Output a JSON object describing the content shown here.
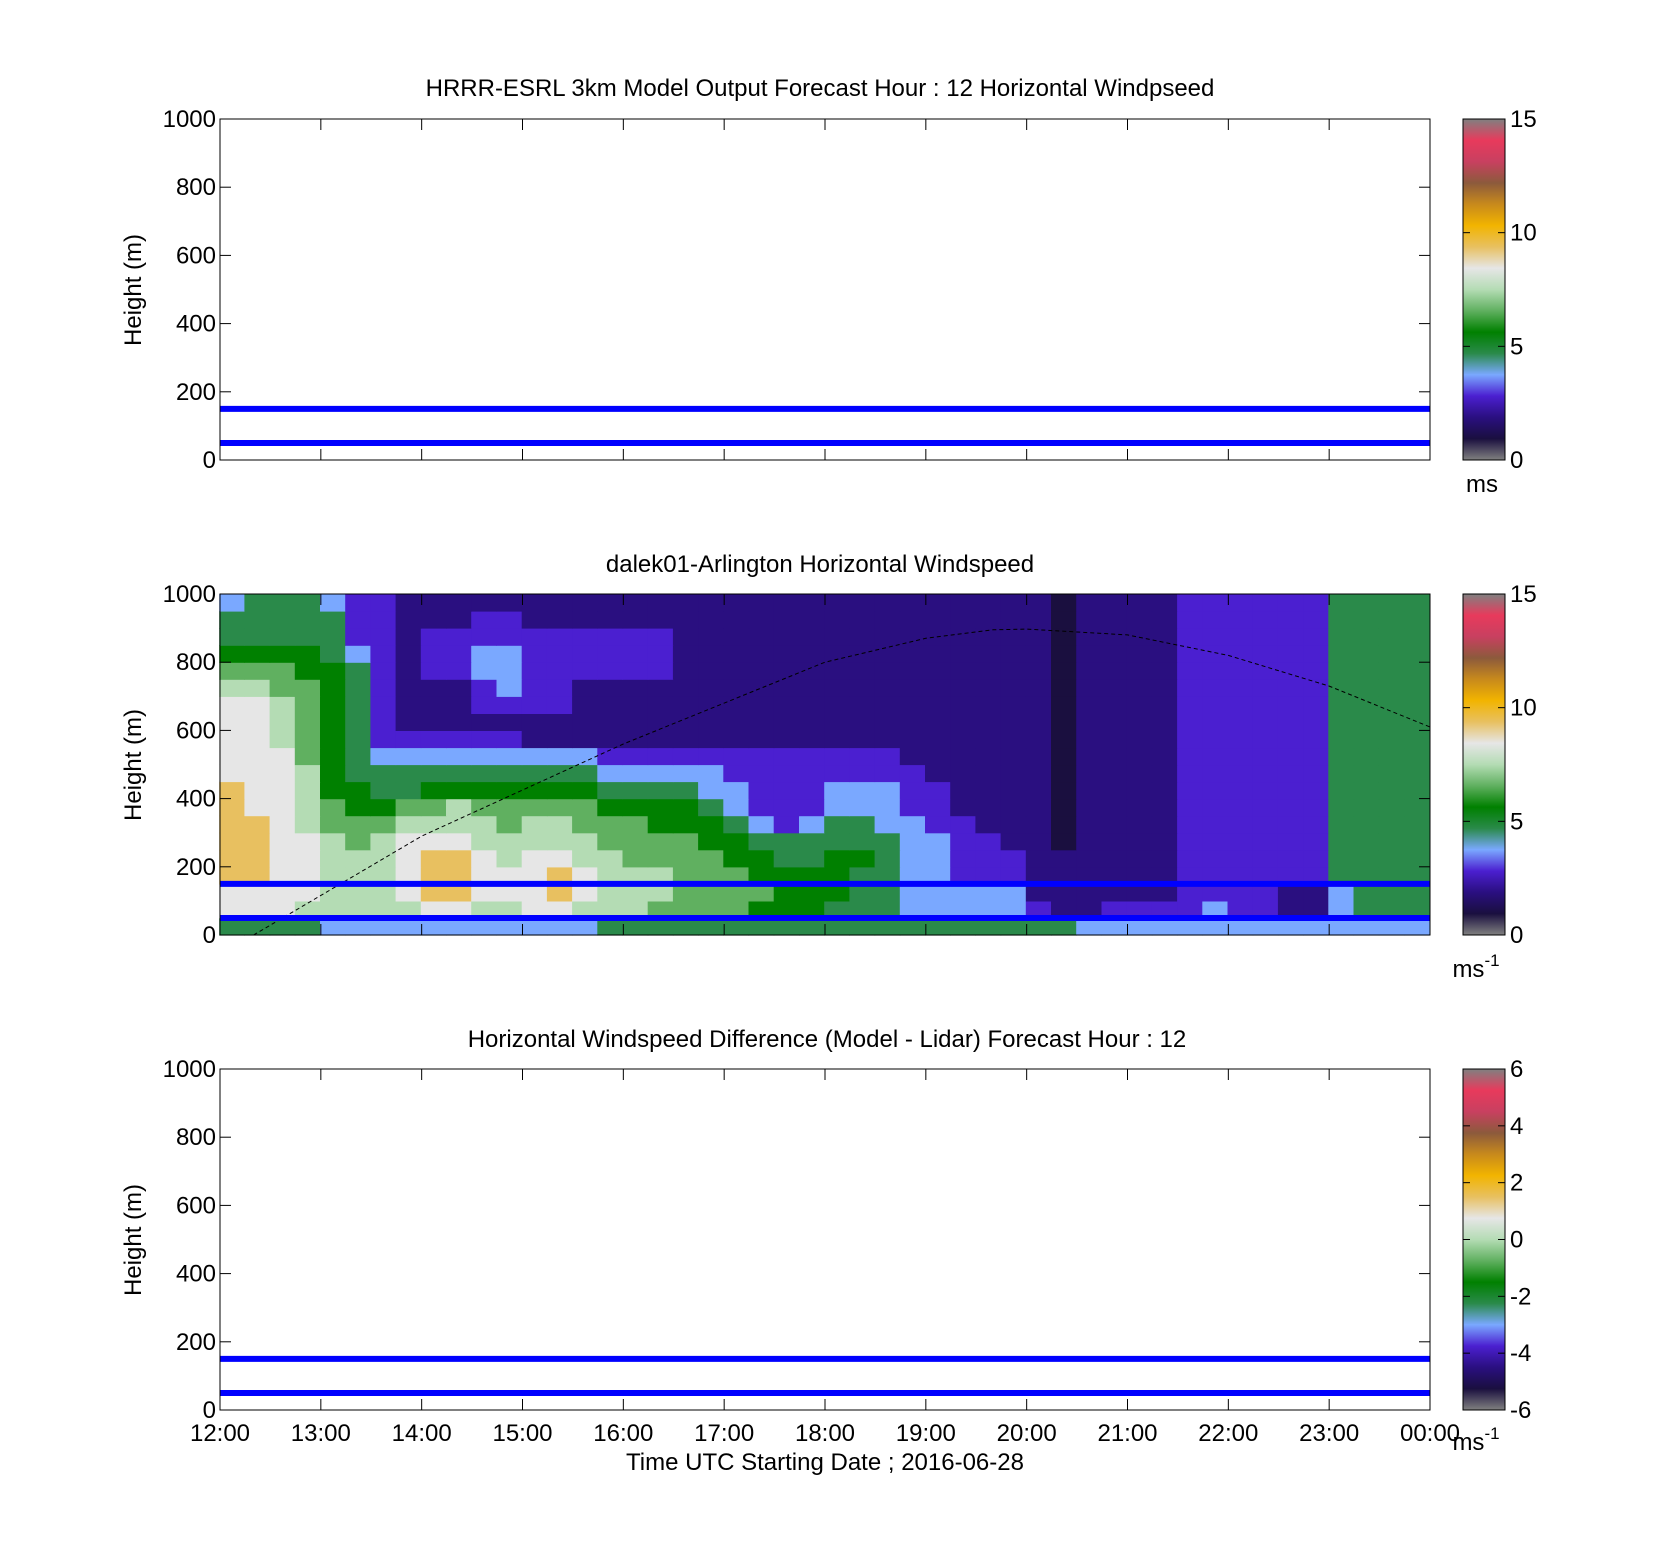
{
  "figure": {
    "xlabel": "Time UTC  Starting Date ; 2016-06-28",
    "xticks": [
      "12:00",
      "13:00",
      "14:00",
      "15:00",
      "16:00",
      "17:00",
      "18:00",
      "19:00",
      "20:00",
      "21:00",
      "22:00",
      "23:00",
      "00:00"
    ]
  },
  "chart_data": [
    {
      "type": "heatmap",
      "title": "HRRR-ESRL 3km Model Output   Forecast Hour : 12 Horizontal Windpseed",
      "ylabel": "Height (m)",
      "ylim": [
        0,
        1000
      ],
      "yticks": [
        0,
        200,
        400,
        600,
        800,
        1000
      ],
      "xlim_hours": [
        12,
        24
      ],
      "values": [],
      "reference_lines": [
        {
          "height": 50,
          "color": "#0000ff"
        },
        {
          "height": 150,
          "color": "#0000ff"
        }
      ],
      "colorbar": {
        "range": [
          0,
          15
        ],
        "ticks": [
          0,
          5,
          10,
          15
        ],
        "unit": "ms"
      }
    },
    {
      "type": "heatmap",
      "title": "dalek01-Arlington  Horizontal Windspeed",
      "ylabel": "Height (m)",
      "ylim": [
        0,
        1000
      ],
      "yticks": [
        0,
        200,
        400,
        600,
        800,
        1000
      ],
      "xlim_hours": [
        12,
        24
      ],
      "unit": "m/s",
      "times": [
        "12:07",
        "12:22",
        "12:37",
        "12:52",
        "13:07",
        "13:22",
        "13:37",
        "13:52",
        "14:07",
        "14:22",
        "14:37",
        "14:52",
        "15:07",
        "15:22",
        "15:37",
        "15:52",
        "16:07",
        "16:22",
        "16:37",
        "16:52",
        "17:07",
        "17:22",
        "17:37",
        "17:52",
        "18:07",
        "18:22",
        "18:37",
        "18:52",
        "19:07",
        "19:22",
        "19:37",
        "19:52",
        "20:07",
        "20:22",
        "20:37",
        "20:52",
        "21:07",
        "21:22",
        "21:37",
        "21:52",
        "22:07",
        "22:22",
        "22:37",
        "22:52",
        "23:07",
        "23:22",
        "23:37",
        "23:52"
      ],
      "heights": [
        25,
        75,
        125,
        175,
        225,
        275,
        325,
        375,
        425,
        475,
        525,
        575,
        625,
        675,
        725,
        775,
        825,
        875,
        925,
        975
      ],
      "values": [
        [
          4.5,
          4.5,
          4.5,
          4.5,
          3.5,
          3.0,
          3.0,
          3.0,
          3.0,
          3.0,
          3.0,
          3.0,
          3.0,
          3.0,
          3.5,
          4.0,
          4.0,
          4.0,
          4.0,
          4.0,
          4.5,
          4.5,
          4.5,
          4.5,
          4.5,
          4.5,
          4.5,
          4.5,
          4.5,
          4.5,
          4.5,
          4.0,
          4.0,
          4.0,
          3.0,
          3.0,
          3.0,
          3.0,
          3.5,
          3.5,
          3.0,
          3.0,
          3.0,
          3.0,
          3.0,
          3.0,
          3.0,
          3.0
        ],
        [
          8.0,
          8.0,
          8.0,
          7.5,
          7.0,
          7.0,
          7.0,
          7.5,
          8.5,
          8.5,
          7.5,
          7.5,
          8.0,
          8.5,
          7.5,
          7.5,
          7.0,
          6.5,
          6.5,
          6.5,
          6.0,
          5.5,
          5.5,
          5.0,
          4.5,
          4.5,
          4.0,
          3.5,
          3.0,
          3.0,
          3.0,
          3.0,
          2.0,
          1.5,
          1.5,
          2.0,
          2.0,
          2.0,
          2.5,
          3.0,
          2.5,
          2.0,
          1.5,
          1.5,
          3.5,
          4.5,
          4.5,
          4.5
        ],
        [
          8.5,
          8.5,
          8.5,
          8.0,
          7.5,
          7.5,
          7.5,
          8.0,
          9.0,
          9.0,
          8.0,
          8.0,
          8.5,
          9.0,
          8.0,
          7.5,
          7.0,
          7.0,
          6.5,
          6.5,
          6.0,
          6.0,
          5.5,
          5.0,
          5.0,
          4.5,
          4.5,
          3.5,
          3.0,
          3.0,
          3.0,
          3.0,
          1.5,
          1.0,
          1.0,
          1.5,
          1.5,
          1.5,
          2.0,
          2.5,
          2.5,
          2.0,
          1.5,
          1.5,
          3.5,
          4.5,
          4.5,
          4.5
        ],
        [
          9.0,
          9.0,
          8.5,
          8.0,
          7.5,
          7.5,
          7.5,
          8.5,
          9.0,
          9.0,
          8.0,
          8.0,
          8.5,
          9.0,
          8.0,
          7.5,
          7.0,
          7.0,
          6.5,
          6.5,
          6.0,
          5.5,
          5.0,
          5.0,
          5.0,
          4.5,
          4.5,
          3.5,
          3.0,
          2.5,
          2.5,
          2.0,
          1.5,
          1.0,
          1.0,
          1.5,
          1.5,
          1.5,
          2.0,
          2.5,
          2.5,
          2.0,
          2.0,
          2.0,
          4.0,
          4.5,
          4.5,
          4.5
        ],
        [
          9.0,
          9.0,
          8.5,
          8.0,
          7.0,
          7.0,
          7.5,
          8.5,
          9.0,
          9.0,
          8.0,
          7.5,
          8.0,
          8.0,
          7.5,
          7.0,
          6.5,
          6.5,
          6.0,
          6.0,
          5.5,
          5.0,
          4.5,
          4.5,
          5.0,
          5.0,
          4.5,
          3.5,
          3.0,
          2.5,
          2.0,
          2.0,
          1.5,
          1.0,
          1.0,
          1.5,
          1.5,
          1.5,
          2.0,
          2.5,
          2.5,
          2.0,
          2.0,
          2.0,
          4.5,
          4.5,
          4.5,
          4.5
        ],
        [
          9.0,
          9.0,
          8.5,
          8.0,
          7.0,
          6.5,
          7.0,
          8.0,
          8.5,
          8.5,
          7.5,
          7.0,
          7.5,
          7.5,
          7.0,
          6.5,
          6.5,
          6.0,
          6.0,
          5.5,
          5.0,
          4.5,
          4.5,
          4.5,
          4.5,
          4.5,
          4.0,
          3.5,
          3.0,
          2.5,
          2.0,
          1.5,
          1.0,
          0.5,
          1.0,
          1.5,
          1.5,
          1.5,
          2.0,
          2.5,
          2.5,
          2.0,
          2.0,
          2.5,
          4.5,
          4.5,
          4.5,
          4.5
        ],
        [
          9.0,
          9.0,
          8.5,
          7.5,
          6.5,
          6.0,
          6.5,
          7.0,
          7.5,
          7.5,
          7.0,
          6.5,
          7.0,
          7.0,
          6.5,
          6.0,
          6.0,
          5.5,
          5.5,
          5.0,
          4.5,
          3.5,
          2.5,
          3.0,
          4.0,
          4.0,
          3.5,
          3.0,
          2.5,
          2.0,
          1.5,
          1.5,
          1.0,
          0.5,
          1.0,
          1.5,
          1.5,
          1.5,
          2.0,
          2.5,
          2.5,
          2.0,
          2.0,
          2.5,
          4.5,
          4.5,
          4.5,
          4.5
        ],
        [
          9.0,
          8.5,
          8.0,
          7.5,
          6.0,
          5.5,
          5.5,
          6.0,
          6.5,
          7.0,
          6.5,
          6.0,
          6.5,
          6.5,
          6.0,
          5.5,
          5.5,
          5.0,
          5.0,
          4.5,
          3.5,
          2.5,
          2.5,
          2.5,
          3.0,
          3.0,
          3.0,
          2.5,
          2.0,
          1.5,
          1.5,
          1.0,
          1.0,
          0.5,
          1.0,
          1.5,
          1.5,
          1.5,
          2.0,
          2.5,
          2.5,
          2.0,
          2.0,
          2.5,
          4.5,
          4.5,
          4.5,
          4.5
        ],
        [
          9.0,
          8.5,
          8.0,
          7.5,
          5.5,
          5.0,
          4.5,
          4.5,
          5.0,
          5.5,
          5.0,
          5.0,
          5.5,
          5.5,
          5.0,
          4.5,
          4.5,
          4.0,
          4.0,
          3.5,
          3.0,
          2.5,
          2.5,
          2.5,
          3.0,
          3.0,
          3.0,
          2.5,
          2.0,
          1.5,
          1.0,
          1.0,
          1.0,
          0.5,
          1.0,
          1.5,
          1.5,
          1.5,
          2.0,
          2.5,
          2.5,
          2.0,
          2.0,
          2.5,
          4.5,
          4.5,
          4.5,
          4.5
        ],
        [
          8.5,
          8.5,
          8.0,
          7.0,
          5.0,
          4.5,
          4.5,
          4.0,
          4.0,
          4.5,
          4.5,
          4.5,
          4.5,
          4.0,
          4.0,
          3.5,
          3.5,
          3.0,
          3.0,
          3.0,
          2.5,
          2.5,
          2.5,
          2.5,
          2.5,
          2.5,
          2.5,
          2.0,
          1.5,
          1.5,
          1.0,
          1.0,
          1.0,
          0.5,
          1.0,
          1.5,
          1.5,
          1.5,
          2.0,
          2.5,
          2.5,
          2.0,
          2.0,
          2.5,
          4.5,
          4.5,
          4.5,
          4.5
        ],
        [
          8.5,
          8.5,
          8.0,
          6.5,
          5.0,
          4.5,
          3.5,
          3.0,
          3.0,
          3.5,
          3.5,
          3.5,
          3.5,
          3.0,
          3.0,
          2.5,
          2.5,
          2.0,
          2.0,
          2.0,
          2.0,
          2.0,
          2.0,
          2.0,
          2.0,
          2.0,
          2.0,
          1.5,
          1.5,
          1.0,
          1.0,
          1.0,
          1.0,
          0.5,
          1.0,
          1.5,
          1.5,
          1.5,
          2.0,
          2.5,
          2.5,
          2.0,
          2.0,
          2.5,
          4.5,
          4.5,
          4.5,
          4.5
        ],
        [
          8.5,
          8.5,
          7.5,
          6.5,
          5.0,
          4.0,
          2.5,
          2.0,
          2.0,
          2.0,
          2.0,
          2.0,
          1.5,
          1.5,
          1.5,
          1.5,
          1.5,
          1.5,
          1.5,
          1.5,
          1.5,
          1.5,
          1.5,
          1.5,
          1.5,
          1.5,
          1.5,
          1.5,
          1.0,
          1.0,
          1.0,
          1.0,
          1.0,
          0.5,
          1.0,
          1.5,
          1.5,
          1.5,
          2.0,
          2.5,
          2.5,
          2.0,
          2.0,
          2.5,
          4.5,
          4.5,
          4.5,
          4.5
        ],
        [
          8.5,
          8.0,
          7.5,
          6.5,
          5.5,
          4.5,
          2.0,
          1.5,
          1.5,
          1.5,
          1.5,
          1.5,
          1.5,
          1.5,
          1.5,
          1.5,
          1.5,
          1.5,
          1.5,
          1.5,
          1.5,
          1.5,
          1.5,
          1.5,
          1.5,
          1.5,
          1.5,
          1.5,
          1.0,
          1.0,
          1.0,
          1.0,
          1.0,
          0.5,
          1.0,
          1.5,
          1.5,
          1.5,
          2.0,
          2.5,
          2.5,
          2.0,
          2.0,
          2.5,
          4.5,
          4.5,
          4.5,
          4.5
        ],
        [
          8.0,
          8.0,
          7.0,
          6.5,
          5.5,
          4.5,
          2.0,
          1.5,
          1.5,
          1.5,
          2.0,
          2.0,
          2.0,
          2.0,
          1.5,
          1.5,
          1.5,
          1.5,
          1.5,
          1.5,
          1.5,
          1.5,
          1.5,
          1.5,
          1.5,
          1.5,
          1.5,
          1.5,
          1.0,
          1.0,
          1.0,
          1.0,
          1.0,
          0.5,
          1.0,
          1.5,
          1.5,
          1.5,
          2.0,
          2.5,
          2.5,
          2.0,
          2.0,
          2.5,
          4.5,
          4.5,
          4.5,
          4.5
        ],
        [
          7.0,
          7.0,
          6.5,
          6.0,
          5.5,
          4.5,
          2.0,
          1.5,
          1.5,
          1.5,
          2.5,
          3.0,
          2.5,
          2.0,
          1.5,
          1.5,
          1.5,
          1.5,
          1.5,
          1.5,
          1.5,
          1.5,
          1.5,
          1.5,
          1.5,
          1.5,
          1.5,
          1.5,
          1.0,
          1.0,
          1.0,
          1.0,
          1.0,
          0.5,
          1.0,
          1.5,
          1.5,
          1.5,
          2.0,
          2.5,
          2.5,
          2.0,
          2.0,
          2.5,
          4.5,
          4.5,
          4.5,
          4.5
        ],
        [
          6.0,
          6.0,
          6.0,
          5.5,
          5.0,
          4.0,
          2.0,
          1.5,
          2.0,
          2.5,
          3.0,
          3.0,
          2.5,
          2.5,
          2.0,
          2.0,
          2.0,
          2.0,
          1.5,
          1.5,
          1.5,
          1.5,
          1.5,
          1.5,
          1.5,
          1.5,
          1.5,
          1.5,
          1.0,
          1.0,
          1.0,
          1.0,
          1.0,
          0.5,
          1.0,
          1.5,
          1.5,
          1.5,
          2.0,
          2.5,
          2.5,
          2.0,
          2.0,
          2.5,
          4.5,
          4.5,
          4.5,
          4.5
        ],
        [
          5.0,
          5.0,
          5.0,
          5.0,
          4.5,
          3.0,
          2.0,
          1.5,
          2.0,
          2.5,
          3.0,
          3.0,
          2.5,
          2.5,
          2.0,
          2.0,
          2.0,
          2.0,
          1.5,
          1.5,
          1.5,
          1.5,
          1.5,
          1.5,
          1.5,
          1.5,
          1.5,
          1.5,
          1.0,
          1.0,
          1.0,
          1.0,
          1.0,
          0.5,
          1.0,
          1.5,
          1.5,
          1.5,
          2.0,
          2.5,
          2.5,
          2.0,
          2.0,
          2.5,
          4.5,
          4.5,
          4.5,
          4.5
        ],
        [
          4.5,
          4.5,
          4.5,
          4.5,
          4.0,
          2.5,
          2.0,
          1.5,
          2.0,
          2.0,
          2.5,
          2.5,
          2.0,
          2.0,
          2.0,
          2.0,
          2.0,
          2.0,
          1.5,
          1.5,
          1.5,
          1.5,
          1.5,
          1.5,
          1.5,
          1.5,
          1.5,
          1.5,
          1.0,
          1.0,
          1.0,
          1.0,
          1.0,
          0.5,
          1.0,
          1.5,
          1.5,
          1.5,
          2.0,
          2.5,
          2.5,
          2.0,
          2.0,
          2.5,
          4.5,
          4.5,
          4.5,
          4.5
        ],
        [
          4.5,
          4.5,
          4.5,
          4.5,
          4.0,
          2.5,
          2.0,
          1.5,
          1.5,
          1.5,
          2.0,
          2.0,
          1.5,
          1.5,
          1.5,
          1.5,
          1.5,
          1.5,
          1.5,
          1.5,
          1.5,
          1.5,
          1.5,
          1.5,
          1.5,
          1.5,
          1.5,
          1.5,
          1.0,
          1.0,
          1.0,
          1.0,
          1.0,
          0.5,
          1.0,
          1.5,
          1.5,
          1.5,
          2.0,
          2.5,
          2.5,
          2.0,
          2.0,
          2.5,
          4.5,
          4.5,
          4.5,
          4.5
        ],
        [
          3.5,
          4.5,
          4.5,
          4.5,
          3.5,
          2.5,
          2.0,
          1.5,
          1.5,
          1.5,
          1.5,
          1.5,
          1.5,
          1.5,
          1.5,
          1.5,
          1.5,
          1.5,
          1.5,
          1.5,
          1.5,
          1.5,
          1.5,
          1.5,
          1.5,
          1.5,
          1.5,
          1.5,
          1.0,
          1.0,
          1.0,
          1.0,
          1.0,
          0.5,
          1.0,
          1.5,
          1.5,
          1.5,
          2.0,
          2.5,
          2.5,
          2.0,
          2.0,
          2.5,
          4.5,
          4.5,
          4.5,
          4.5
        ]
      ],
      "curve": {
        "style": "dashed",
        "color": "#000000",
        "times": [
          "12:20",
          "14:00",
          "16:00",
          "18:00",
          "19:00",
          "19:40",
          "20:00",
          "21:00",
          "22:00",
          "23:00",
          "00:00"
        ],
        "heights": [
          0,
          290,
          560,
          800,
          870,
          895,
          897,
          880,
          820,
          730,
          610
        ]
      },
      "reference_lines": [
        {
          "height": 50,
          "color": "#0000ff"
        },
        {
          "height": 150,
          "color": "#0000ff"
        }
      ],
      "colorbar": {
        "range": [
          0,
          15
        ],
        "ticks": [
          0,
          5,
          10,
          15
        ],
        "unit": "ms",
        "unit_exp": "-1"
      }
    },
    {
      "type": "heatmap",
      "title": "Horizontal Windspeed Difference (Model - Lidar) Forecast Hour : 12",
      "ylabel": "Height (m)",
      "ylim": [
        0,
        1000
      ],
      "yticks": [
        0,
        200,
        400,
        600,
        800,
        1000
      ],
      "xlim_hours": [
        12,
        24
      ],
      "values": [],
      "reference_lines": [
        {
          "height": 50,
          "color": "#0000ff"
        },
        {
          "height": 150,
          "color": "#0000ff"
        }
      ],
      "colorbar": {
        "range": [
          -6,
          6
        ],
        "ticks": [
          -6,
          -4,
          -2,
          0,
          2,
          4,
          6
        ],
        "unit": "ms",
        "unit_exp": "-1"
      }
    }
  ],
  "colormap": [
    "#808080",
    "#1a0f3f",
    "#2a0f80",
    "#4b1fd0",
    "#7aa8ff",
    "#2a8a4a",
    "#008000",
    "#60b060",
    "#b4dcb4",
    "#e6e6e6",
    "#e8c060",
    "#f2b400",
    "#c88a1c",
    "#8c5a3c",
    "#c84060",
    "#e83a5c",
    "#808080"
  ]
}
